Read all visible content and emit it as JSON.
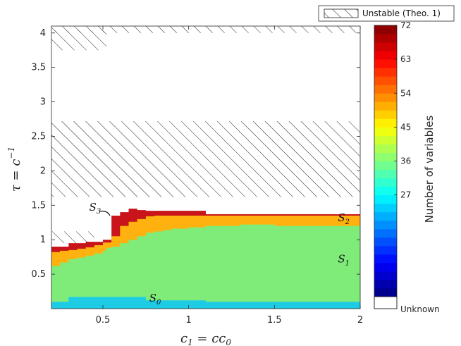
{
  "chart_data": {
    "type": "heatmap",
    "xlabel_main": "c",
    "xlabel_sub1": "1",
    "xlabel_eq": " = cc",
    "xlabel_sub2": "0",
    "ylabel_main": "τ = c",
    "ylabel_sup": "−1",
    "xlim": [
      0.2,
      2.0
    ],
    "ylim": [
      0.0,
      4.1
    ],
    "xticks": [
      {
        "v": 0.5,
        "label": "0.5"
      },
      {
        "v": 1,
        "label": "1"
      },
      {
        "v": 1.5,
        "label": "1.5"
      },
      {
        "v": 2,
        "label": "2"
      }
    ],
    "yticks": [
      {
        "v": 0.5,
        "label": "0.5"
      },
      {
        "v": 1,
        "label": "1"
      },
      {
        "v": 1.5,
        "label": "1.5"
      },
      {
        "v": 2,
        "label": "2"
      },
      {
        "v": 2.5,
        "label": "2.5"
      },
      {
        "v": 3,
        "label": "3"
      },
      {
        "v": 3.5,
        "label": "3.5"
      },
      {
        "v": 4,
        "label": "4"
      }
    ],
    "grid": false,
    "legend": {
      "label": "Unstable (Theo. 1)",
      "placement": "top-right, outside"
    },
    "colorbar": {
      "label": "Number of variables",
      "range": [
        0,
        72
      ],
      "ticks": [
        {
          "v": 27,
          "label": "27"
        },
        {
          "v": 36,
          "label": "36"
        },
        {
          "v": 45,
          "label": "45"
        },
        {
          "v": 54,
          "label": "54"
        },
        {
          "v": 63,
          "label": "63"
        },
        {
          "v": 72,
          "label": "72"
        }
      ],
      "unknown_label": "Unknown",
      "colormap": "jet"
    },
    "regions": [
      {
        "name": "S0",
        "value": 24,
        "color": "#1ecbe5",
        "boundary_x": [
          0.2,
          0.3,
          0.3,
          0.75,
          0.75,
          1.1,
          1.1,
          2.0
        ],
        "boundary_y": [
          0.1,
          0.1,
          0.17,
          0.17,
          0.12,
          0.12,
          0.1,
          0.1
        ]
      },
      {
        "name": "S1",
        "value": 40,
        "color": "#7fec7a",
        "boundary_x": [
          0.2,
          0.25,
          0.3,
          0.35,
          0.4,
          0.45,
          0.5,
          0.52,
          0.55,
          0.6,
          0.65,
          0.7,
          0.75,
          0.8,
          0.85,
          0.9,
          1.0,
          1.1,
          1.3,
          1.5,
          2.0
        ],
        "boundary_y": [
          0.62,
          0.67,
          0.72,
          0.74,
          0.77,
          0.8,
          0.84,
          0.88,
          0.9,
          0.95,
          1.0,
          1.05,
          1.1,
          1.12,
          1.14,
          1.16,
          1.18,
          1.2,
          1.22,
          1.2,
          1.2
        ]
      },
      {
        "name": "S2",
        "value": 54,
        "color": "#ffb20f",
        "boundary_x": [
          0.2,
          0.25,
          0.3,
          0.35,
          0.4,
          0.45,
          0.5,
          0.55,
          0.6,
          0.65,
          0.7,
          0.75,
          0.8,
          1.0,
          1.1,
          1.5,
          2.0
        ],
        "boundary_y": [
          0.82,
          0.84,
          0.85,
          0.87,
          0.89,
          0.92,
          0.96,
          1.05,
          1.2,
          1.26,
          1.3,
          1.34,
          1.35,
          1.35,
          1.35,
          1.35,
          1.35
        ]
      },
      {
        "name": "S3",
        "value": 72,
        "color": "#c8141a",
        "boundary_x": [
          0.2,
          0.25,
          0.3,
          0.35,
          0.4,
          0.45,
          0.5,
          0.55,
          0.6,
          0.65,
          0.7,
          0.75,
          0.8,
          1.0,
          1.1
        ],
        "boundary_y": [
          0.9,
          0.9,
          0.95,
          0.95,
          0.97,
          0.97,
          1.0,
          1.35,
          1.4,
          1.45,
          1.43,
          1.42,
          1.42,
          1.42,
          1.37
        ]
      }
    ],
    "unstable_bands": [
      {
        "x": [
          0.2,
          2.0
        ],
        "y": [
          1.62,
          2.72
        ]
      },
      {
        "x": [
          0.2,
          2.0
        ],
        "y": [
          4.0,
          4.1
        ]
      },
      {
        "x": [
          0.2,
          0.52
        ],
        "y": [
          3.75,
          4.05
        ]
      },
      {
        "x": [
          0.2,
          0.45
        ],
        "y": [
          0.95,
          1.12
        ]
      }
    ],
    "annotations": [
      {
        "text": "S",
        "sub": "0",
        "x": 0.77,
        "y": 0.1
      },
      {
        "text": "S",
        "sub": "1",
        "x": 1.87,
        "y": 0.67
      },
      {
        "text": "S",
        "sub": "2",
        "x": 1.87,
        "y": 1.27
      },
      {
        "text": "S",
        "sub": "3",
        "x": 0.42,
        "y": 1.42
      }
    ]
  },
  "colors": {
    "unknown": "#ffffff",
    "hatch": "#222222"
  }
}
